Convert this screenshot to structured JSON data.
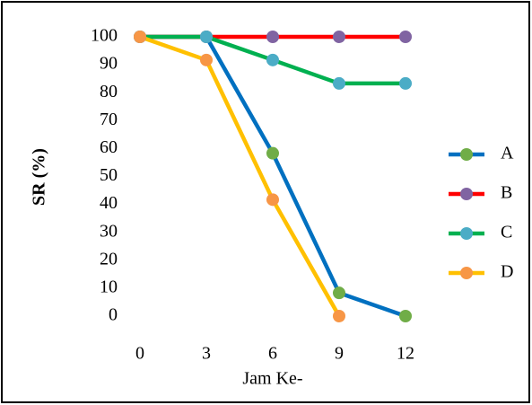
{
  "chart_data": {
    "type": "line",
    "x_label": "Jam Ke-",
    "y_label": "SR (%)",
    "x": [
      0,
      3,
      6,
      9,
      12
    ],
    "xlim": [
      0,
      12
    ],
    "xticks": [
      0,
      3,
      6,
      9,
      12
    ],
    "ylim": [
      0,
      100
    ],
    "yticks": [
      0,
      10,
      20,
      30,
      40,
      50,
      60,
      70,
      80,
      90,
      100
    ],
    "grid": false,
    "legend": "right",
    "series": [
      {
        "name": "A",
        "color": "#0070c0",
        "marker_color": "#70ad47",
        "values": [
          100,
          100,
          58.3,
          8.3,
          0
        ]
      },
      {
        "name": "B",
        "color": "#ff0000",
        "marker_color": "#8064a2",
        "values": [
          100,
          100,
          100,
          100,
          100
        ]
      },
      {
        "name": "C",
        "color": "#00b050",
        "marker_color": "#4bacc6",
        "values": [
          100,
          100,
          91.7,
          83.3,
          83.3
        ]
      },
      {
        "name": "D",
        "color": "#ffc000",
        "marker_color": "#f79646",
        "values": [
          100,
          91.7,
          41.7,
          0,
          null
        ]
      }
    ]
  }
}
